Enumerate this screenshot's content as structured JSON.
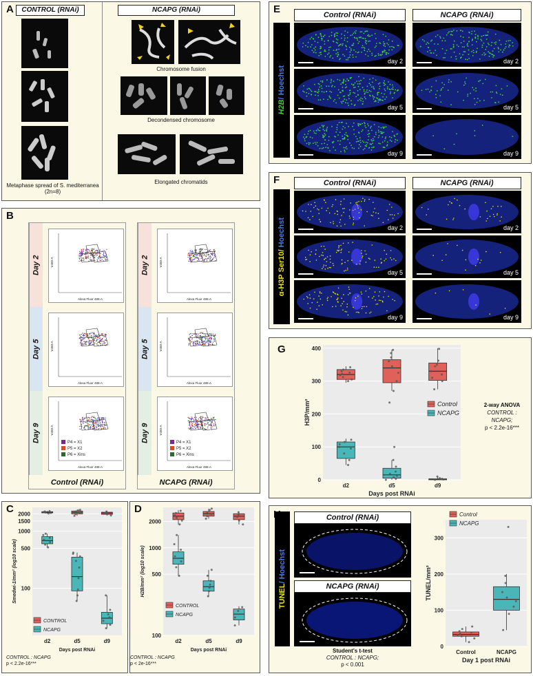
{
  "panel_a": {
    "letter": "A",
    "control_title": "CONTROL (RNAi)",
    "ncapg_title": "NCAPG (RNAi)",
    "caption_metaphase": "Metaphase spread of S. mediterranea (2n=8)",
    "caption_fusion": "Chromosome fusion",
    "caption_decondensed": "Decondensed chromosome",
    "caption_elongated": "Elongated chromatids"
  },
  "panel_b": {
    "letter": "B",
    "days": [
      "Day 2",
      "Day 5",
      "Day 9"
    ],
    "ylabel": "V450-A",
    "xlabel": "Alexa Fluor 488-A",
    "gates": [
      "P4",
      "P5",
      "P6"
    ],
    "legend": [
      {
        "label": "P4 = X1",
        "color": "#7a2a8a"
      },
      {
        "label": "P5 = X2",
        "color": "#d0502a"
      },
      {
        "label": "P6 = Xins",
        "color": "#2e6a2e"
      }
    ],
    "control_title": "Control (RNAi)",
    "ncapg_title": "NCAPG (RNAi)"
  },
  "panel_e": {
    "letter": "E",
    "control_title": "Control (RNAi)",
    "ncapg_title": "NCAPG (RNAi)",
    "side_label_green": "H2B",
    "side_label_blue": "/ Hoechst",
    "days": [
      "day 2",
      "day 5",
      "day 9"
    ]
  },
  "panel_f": {
    "letter": "F",
    "control_title": "Control (RNAi)",
    "ncapg_title": "NCAPG (RNAi)",
    "side_label_yellow": "α-H3P Ser10/",
    "side_label_blue": " Hoechst",
    "days": [
      "day 2",
      "day 5",
      "day 9"
    ]
  },
  "panel_g": {
    "letter": "G",
    "stats_title": "2-way ANOVA",
    "stats_line1": "CONTROL :",
    "stats_line2": "NCAPG;",
    "stats_line3": "p < 2.2e-16***"
  },
  "panel_h": {
    "letter": "H",
    "control_title": "Control (RNAi)",
    "ncapg_title": "NCAPG (RNAi)",
    "side_label_yellow": "TUNEL",
    "side_label_blue": "/ Hoechst",
    "stats_title": "Student's t-test",
    "stats_line1": "CONTROL : NCAPG;",
    "stats_line2": "p < 0.001"
  },
  "panel_c": {
    "letter": "C",
    "stats_line1": "CONTROL : NCAPG",
    "stats_line2": "p < 2.2e-16***"
  },
  "panel_d": {
    "letter": "D",
    "stats_line1": "CONTROL : NCAPG",
    "stats_line2": "p < 2e-16***"
  },
  "colors": {
    "control": "#e0605a",
    "ncapg": "#4bb6b8",
    "panel_bg": "#fcf8e6",
    "plot_bg": "#ebebeb"
  },
  "chart_data": [
    {
      "id": "G",
      "type": "box",
      "categories": [
        "d2",
        "d5",
        "d9"
      ],
      "xlabel": "Days post RNAi",
      "ylabel": "H3P/mm²",
      "ylim": [
        0,
        410
      ],
      "yticks": [
        0,
        100,
        200,
        300,
        400
      ],
      "legend": [
        "Control",
        "NCAPG"
      ],
      "series": [
        {
          "name": "Control",
          "boxes": [
            {
              "q1": 305,
              "median": 320,
              "q3": 335,
              "lo": 295,
              "hi": 345,
              "points": [
                300,
                305,
                312,
                318,
                322,
                326,
                330,
                335,
                342
              ]
            },
            {
              "q1": 295,
              "median": 340,
              "q3": 365,
              "lo": 270,
              "hi": 395,
              "points": [
                235,
                270,
                300,
                325,
                345,
                360,
                372,
                385,
                395
              ]
            },
            {
              "q1": 302,
              "median": 330,
              "q3": 355,
              "lo": 275,
              "hi": 400,
              "points": [
                275,
                300,
                310,
                320,
                330,
                345,
                350,
                362,
                398
              ]
            }
          ]
        },
        {
          "name": "NCAPG",
          "boxes": [
            {
              "q1": 65,
              "median": 100,
              "q3": 115,
              "lo": 45,
              "hi": 125,
              "points": [
                45,
                60,
                80,
                95,
                100,
                108,
                115,
                122
              ]
            },
            {
              "q1": 5,
              "median": 15,
              "q3": 35,
              "lo": 0,
              "hi": 60,
              "points": [
                0,
                3,
                8,
                12,
                18,
                25,
                40,
                60,
                100
              ]
            },
            {
              "q1": 0,
              "median": 2,
              "q3": 3,
              "lo": 0,
              "hi": 10,
              "points": [
                0,
                1,
                2,
                3,
                5,
                10
              ]
            }
          ]
        }
      ]
    },
    {
      "id": "C",
      "type": "box",
      "categories": [
        "d2",
        "d5",
        "d9"
      ],
      "xlabel": "Days post RNAi",
      "ylabel": "Smedwi-1/mm² (log10 scale)",
      "ylim": [
        15,
        2600
      ],
      "log": true,
      "yticks": [
        100,
        500,
        1000,
        1500,
        2000
      ],
      "legend": [
        "CONTROL",
        "NCAPG"
      ],
      "series": [
        {
          "name": "CONTROL",
          "boxes": [
            {
              "q1": 2080,
              "median": 2120,
              "q3": 2180,
              "lo": 2020,
              "hi": 2250,
              "points": [
                2030,
                2080,
                2110,
                2150,
                2200,
                2240
              ]
            },
            {
              "q1": 2000,
              "median": 2120,
              "q3": 2240,
              "lo": 1850,
              "hi": 2350,
              "points": [
                1850,
                1980,
                2100,
                2200,
                2300,
                2350
              ]
            },
            {
              "q1": 1960,
              "median": 2060,
              "q3": 2140,
              "lo": 1850,
              "hi": 2250,
              "points": [
                1880,
                1980,
                2050,
                2120,
                2200
              ]
            }
          ]
        },
        {
          "name": "NCAPG",
          "boxes": [
            {
              "q1": 600,
              "median": 680,
              "q3": 800,
              "lo": 520,
              "hi": 900,
              "points": [
                520,
                580,
                640,
                700,
                760,
                850,
                900
              ]
            },
            {
              "q1": 90,
              "median": 160,
              "q3": 350,
              "lo": 60,
              "hi": 420,
              "points": [
                60,
                75,
                95,
                150,
                230,
                300,
                360,
                400,
                420
              ]
            },
            {
              "q1": 24,
              "median": 30,
              "q3": 38,
              "lo": 20,
              "hi": 75,
              "points": [
                20,
                23,
                27,
                31,
                35,
                42,
                75
              ]
            }
          ]
        }
      ]
    },
    {
      "id": "D",
      "type": "box",
      "categories": [
        "d2",
        "d5",
        "d9"
      ],
      "xlabel": "Days post RNAi",
      "ylabel": "H2B/mm² (log10 scale)",
      "ylim": [
        100,
        2900
      ],
      "log": true,
      "yticks": [
        100,
        500,
        1000,
        2000
      ],
      "legend": [
        "CONTROL",
        "NCAPG"
      ],
      "series": [
        {
          "name": "CONTROL",
          "boxes": [
            {
              "q1": 2100,
              "median": 2300,
              "q3": 2500,
              "lo": 1850,
              "hi": 2700,
              "points": [
                1850,
                2050,
                2200,
                2350,
                2500,
                2650
              ]
            },
            {
              "q1": 2300,
              "median": 2450,
              "q3": 2600,
              "lo": 2150,
              "hi": 2800,
              "points": [
                2150,
                2300,
                2420,
                2550,
                2700,
                2800
              ]
            },
            {
              "q1": 2100,
              "median": 2300,
              "q3": 2450,
              "lo": 1850,
              "hi": 2600,
              "points": [
                1850,
                2050,
                2250,
                2400,
                2550
              ]
            }
          ]
        },
        {
          "name": "NCAPG",
          "boxes": [
            {
              "q1": 650,
              "median": 760,
              "q3": 900,
              "lo": 480,
              "hi": 1400,
              "points": [
                480,
                600,
                700,
                800,
                950,
                1100,
                1400
              ]
            },
            {
              "q1": 320,
              "median": 360,
              "q3": 420,
              "lo": 280,
              "hi": 560,
              "points": [
                280,
                320,
                350,
                380,
                420,
                480,
                560
              ]
            },
            {
              "q1": 150,
              "median": 175,
              "q3": 200,
              "lo": 130,
              "hi": 215,
              "points": [
                130,
                160,
                190,
                210
              ]
            }
          ]
        }
      ]
    },
    {
      "id": "H",
      "type": "box",
      "categories": [
        "Control",
        "NCAPG"
      ],
      "xlabel": "Day 1 post RNAi",
      "ylabel": "TUNEL/mm²",
      "ylim": [
        0,
        350
      ],
      "yticks": [
        0,
        100,
        200,
        300
      ],
      "legend": [
        "Control",
        "NCAPG"
      ],
      "series": [
        {
          "name": "Control",
          "boxes": [
            {
              "q1": 28,
              "median": 33,
              "q3": 40,
              "lo": 12,
              "hi": 55,
              "points": [
                12,
                22,
                28,
                32,
                35,
                38,
                42,
                48,
                55
              ]
            }
          ]
        },
        {
          "name": "NCAPG",
          "boxes": [
            {
              "q1": 100,
              "median": 130,
              "q3": 165,
              "lo": 45,
              "hi": 200,
              "points": [
                45,
                90,
                110,
                125,
                135,
                150,
                175,
                195,
                330
              ]
            }
          ]
        }
      ]
    }
  ]
}
